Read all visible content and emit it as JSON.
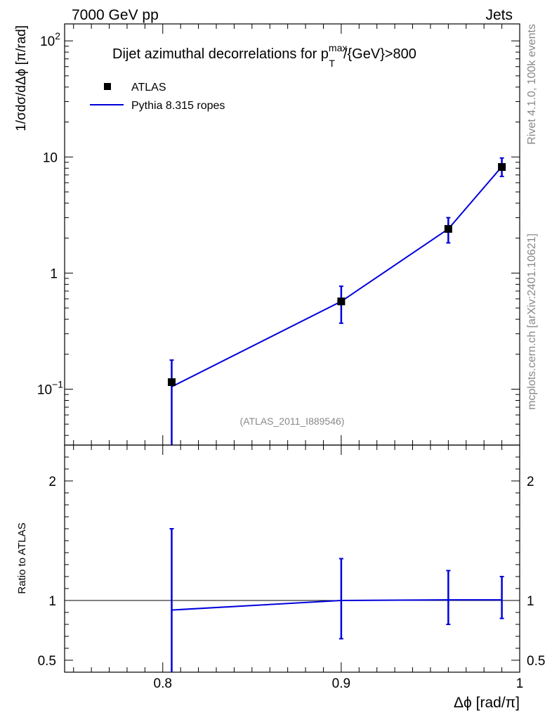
{
  "header": {
    "left": "7000 GeV pp",
    "right": "Jets"
  },
  "side_labels": {
    "rivet": "Rivet 4.1.0,  100k events",
    "mcplots": "mcplots.cern.ch [arXiv:2401.10621]"
  },
  "chart_data": [
    {
      "type": "scatter",
      "title_main": "Dijet azimuthal decorrelations for p",
      "title_sup": "max",
      "title_sub": "T",
      "title_tail": "/{GeV}>800",
      "ylabel": "1/σdσ/dΔϕ [π/rad]",
      "yscale": "log",
      "ylim": [
        0.033,
        140
      ],
      "xlim": [
        0.745,
        1.0
      ],
      "watermark": "(ATLAS_2011_I889546)",
      "legend": [
        "ATLAS",
        "Pythia 8.315 ropes"
      ],
      "yticks": [
        {
          "value": 100,
          "base": "10",
          "exp": "2"
        },
        {
          "value": 10,
          "base": "10",
          "exp": ""
        },
        {
          "value": 1,
          "base": "1",
          "exp": ""
        },
        {
          "value": 0.1,
          "base": "10",
          "exp": "−1"
        }
      ],
      "series": [
        {
          "name": "ATLAS",
          "x": [
            0.805,
            0.9,
            0.96,
            0.99
          ],
          "y": [
            0.115,
            0.57,
            2.4,
            8.2
          ]
        },
        {
          "name": "Pythia 8.315 ropes",
          "x": [
            0.805,
            0.9,
            0.96,
            0.99
          ],
          "y": [
            0.105,
            0.57,
            2.4,
            8.25
          ],
          "err_lo": [
            0.01,
            0.37,
            1.82,
            6.8
          ],
          "err_hi": [
            0.178,
            0.77,
            3.0,
            9.8
          ]
        }
      ]
    },
    {
      "type": "line",
      "ylabel": "Ratio to ATLAS",
      "ylim": [
        0.4,
        2.3
      ],
      "xlim": [
        0.745,
        1.0
      ],
      "xlabel": "Δϕ [rad/π]",
      "yticks": [
        "0.5",
        "1",
        "2"
      ],
      "xticks": [
        "0.8",
        "0.9",
        "1"
      ],
      "reference": 1.0,
      "series": [
        {
          "name": "Pythia 8.315 ropes",
          "x": [
            0.805,
            0.9,
            0.96,
            0.99
          ],
          "y": [
            0.92,
            1.0,
            1.005,
            1.005
          ],
          "err_lo": [
            0.3,
            0.68,
            0.8,
            0.85
          ],
          "err_hi": [
            1.6,
            1.35,
            1.25,
            1.2
          ]
        }
      ]
    }
  ]
}
